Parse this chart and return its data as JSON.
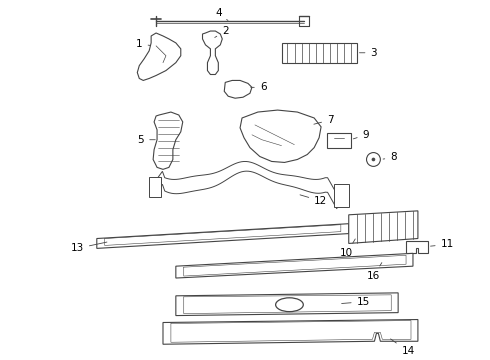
{
  "background_color": "#ffffff",
  "line_color": "#444444",
  "figsize": [
    4.9,
    3.6
  ],
  "dpi": 100
}
